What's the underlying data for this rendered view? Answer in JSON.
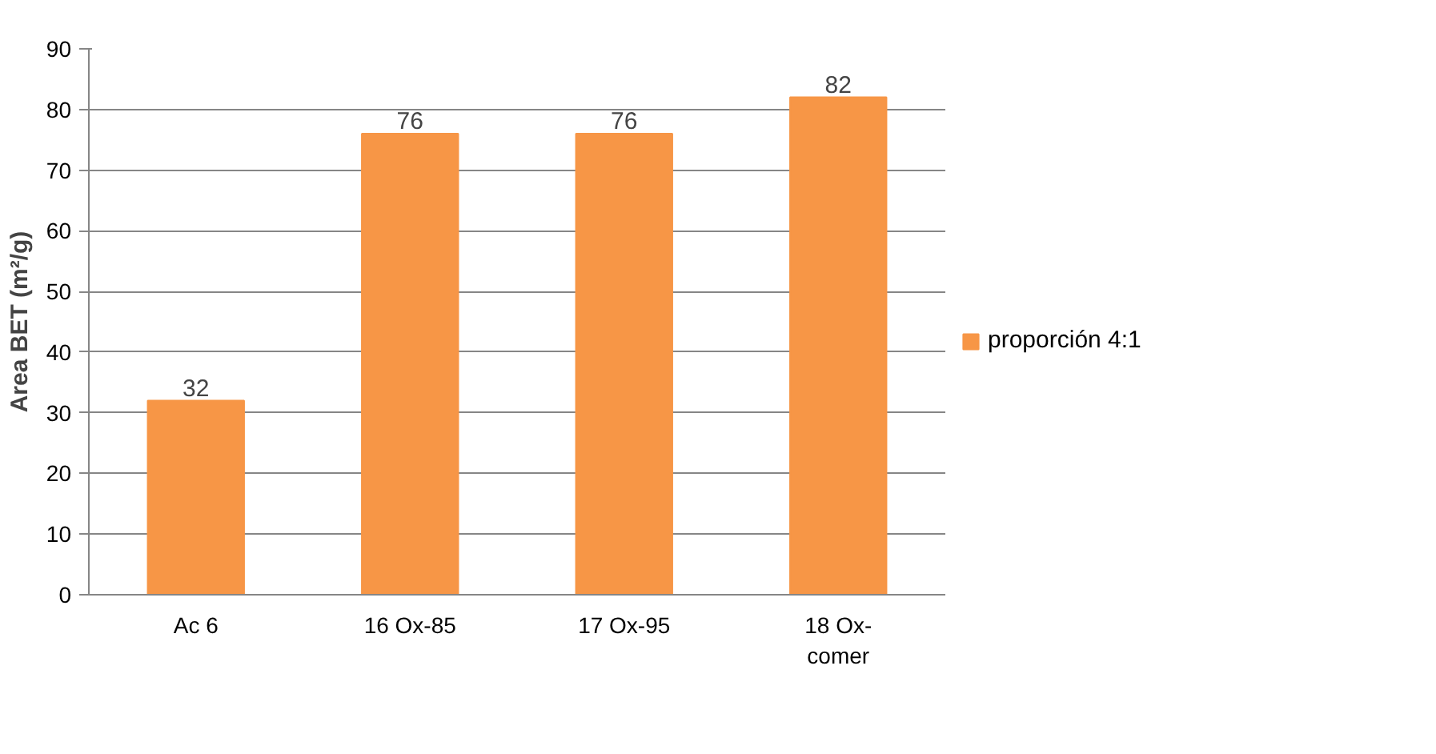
{
  "chart_data": {
    "type": "bar",
    "ylabel": "Area BET (m²/g)",
    "categories": [
      "Ac 6",
      "16 Ox-85",
      "17 Ox-95",
      "18 Ox-comer"
    ],
    "series": [
      {
        "name": "proporción 4:1",
        "color": "#f79646",
        "values": [
          32,
          76,
          76,
          82
        ]
      }
    ],
    "ylim": [
      0,
      90
    ],
    "yticks": [
      0,
      10,
      20,
      30,
      40,
      50,
      60,
      70,
      80,
      90
    ],
    "grid": "y",
    "legend": "right",
    "data_labels": true
  }
}
